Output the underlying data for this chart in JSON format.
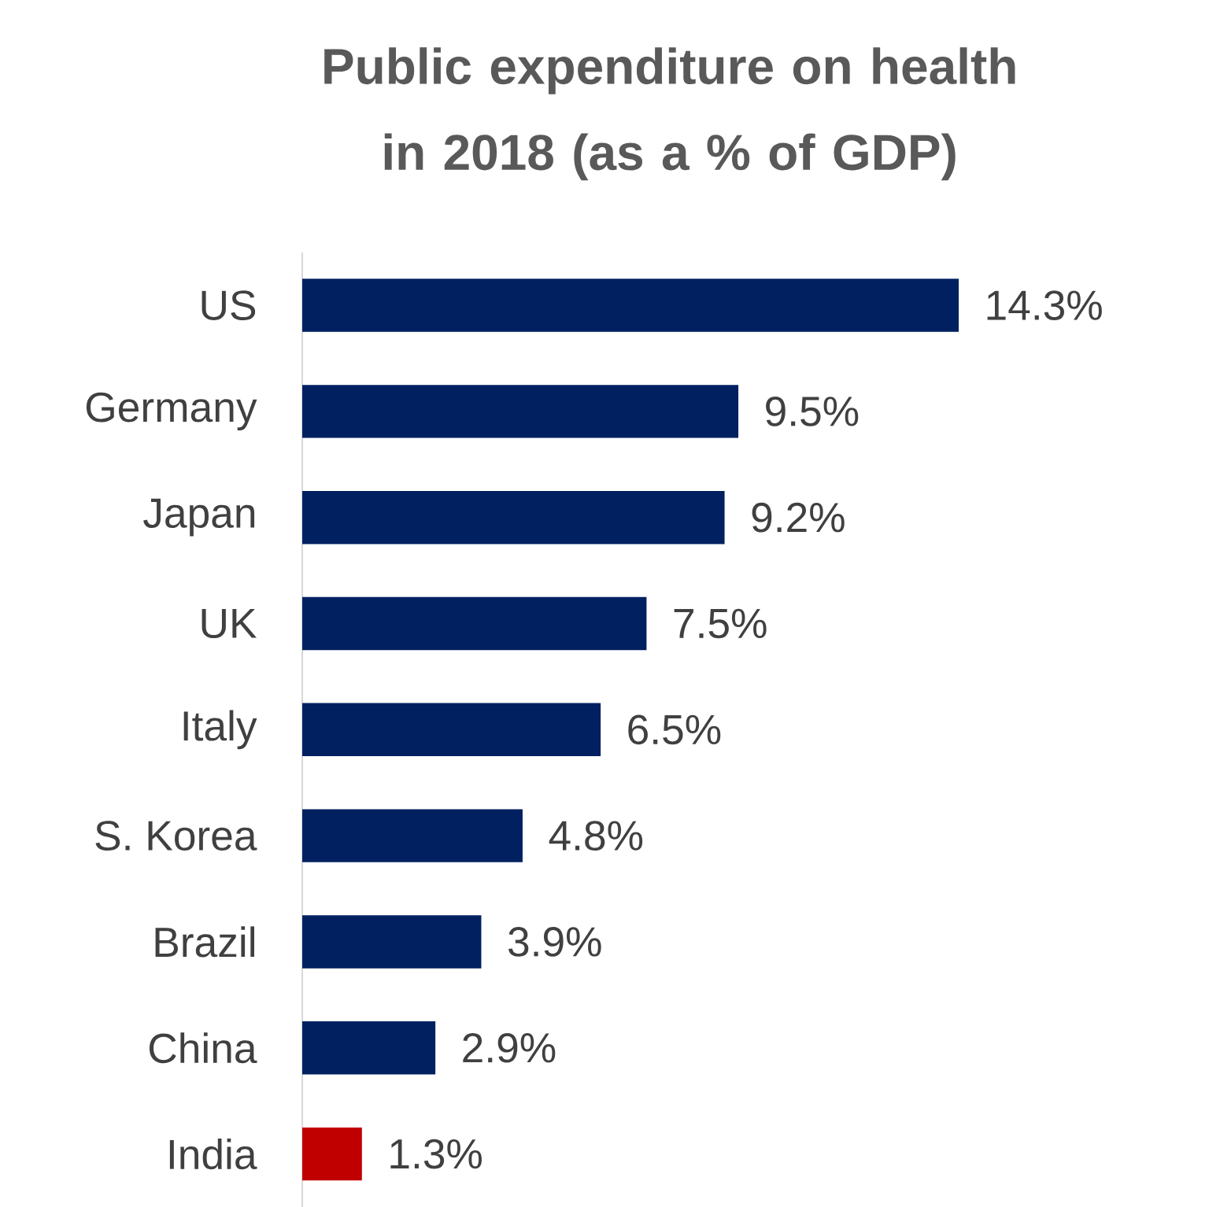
{
  "chart_data": {
    "type": "bar",
    "orientation": "horizontal",
    "title": "Public expenditure on health in 2018 (as a % of GDP)",
    "categories": [
      "US",
      "Germany",
      "Japan",
      "UK",
      "Italy",
      "S. Korea",
      "Brazil",
      "China",
      "India"
    ],
    "values": [
      14.3,
      9.5,
      9.2,
      7.5,
      6.5,
      4.8,
      3.9,
      2.9,
      1.3
    ],
    "colors": [
      "#002060",
      "#002060",
      "#002060",
      "#002060",
      "#002060",
      "#002060",
      "#002060",
      "#002060",
      "#c00000"
    ],
    "value_labels": [
      "14.3%",
      "9.5%",
      "9.2%",
      "7.5%",
      "6.5%",
      "4.8%",
      "3.9%",
      "2.9%",
      "1.3%"
    ]
  }
}
